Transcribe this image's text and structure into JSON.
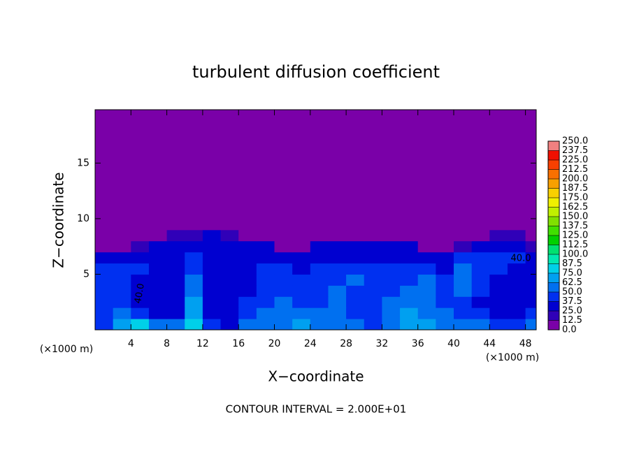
{
  "chart_data": {
    "type": "contour",
    "title": "turbulent diffusion coefficient",
    "xlabel": "X−coordinate",
    "ylabel": "Z−coordinate",
    "x_unit_left": "(×1000 m)",
    "x_unit_right": "(×1000 m)",
    "footer": "CONTOUR INTERVAL = 2.000E+01",
    "annotations": [
      "40.0",
      "40.0"
    ],
    "xlim": [
      0,
      49.2
    ],
    "ylim": [
      0,
      19.8
    ],
    "xticks": [
      4,
      8,
      12,
      16,
      20,
      24,
      28,
      32,
      36,
      40,
      44,
      48
    ],
    "yticks": [
      5,
      10,
      15
    ],
    "x_edges": [
      0,
      2,
      4,
      6,
      8,
      10,
      12,
      14,
      16,
      18,
      20,
      22,
      24,
      26,
      28,
      30,
      32,
      34,
      36,
      38,
      40,
      42,
      44,
      46,
      48,
      49.2
    ],
    "z_edges": [
      0,
      1,
      2,
      3,
      4,
      5,
      6,
      7,
      8,
      9,
      19.8
    ],
    "z": [
      [
        40,
        70,
        75,
        60,
        55,
        80,
        40,
        35,
        50,
        55,
        60,
        65,
        60,
        55,
        50,
        45,
        55,
        65,
        70,
        60,
        55,
        50,
        45,
        40,
        50
      ],
      [
        45,
        60,
        40,
        35,
        35,
        70,
        35,
        30,
        40,
        50,
        55,
        60,
        55,
        50,
        45,
        40,
        60,
        70,
        55,
        50,
        45,
        40,
        35,
        35,
        40
      ],
      [
        40,
        45,
        35,
        30,
        30,
        65,
        35,
        30,
        40,
        45,
        50,
        45,
        45,
        50,
        45,
        40,
        50,
        60,
        50,
        45,
        40,
        35,
        35,
        30,
        35
      ],
      [
        40,
        40,
        35,
        30,
        30,
        60,
        35,
        30,
        35,
        40,
        45,
        40,
        45,
        50,
        45,
        40,
        45,
        55,
        55,
        45,
        50,
        40,
        35,
        30,
        35
      ],
      [
        40,
        45,
        35,
        30,
        30,
        50,
        30,
        30,
        35,
        40,
        40,
        40,
        45,
        45,
        50,
        45,
        40,
        45,
        50,
        40,
        50,
        45,
        35,
        30,
        35
      ],
      [
        45,
        40,
        40,
        35,
        30,
        45,
        30,
        30,
        30,
        40,
        40,
        35,
        40,
        40,
        45,
        45,
        40,
        40,
        40,
        35,
        50,
        45,
        40,
        30,
        35
      ],
      [
        30,
        35,
        35,
        35,
        30,
        40,
        30,
        30,
        30,
        35,
        30,
        30,
        30,
        35,
        35,
        35,
        35,
        30,
        35,
        25,
        40,
        45,
        40,
        40,
        35
      ],
      [
        5,
        5,
        20,
        30,
        30,
        35,
        30,
        30,
        30,
        25,
        10,
        10,
        25,
        30,
        30,
        30,
        30,
        25,
        10,
        5,
        20,
        35,
        35,
        35,
        20
      ],
      [
        0,
        0,
        0,
        5,
        15,
        20,
        25,
        15,
        5,
        0,
        0,
        0,
        0,
        0,
        5,
        10,
        5,
        0,
        0,
        0,
        0,
        5,
        15,
        15,
        0
      ],
      [
        0,
        0,
        0,
        0,
        0,
        0,
        0,
        0,
        0,
        0,
        0,
        0,
        0,
        0,
        0,
        0,
        0,
        0,
        0,
        0,
        0,
        0,
        0,
        0,
        0
      ]
    ],
    "colorbar": {
      "levels": [
        {
          "value": 0,
          "label": "0.0"
        },
        12.5,
        {
          "value": 25,
          "label": "25.0"
        },
        37.5,
        {
          "value": 50,
          "label": "50.0"
        },
        62.5,
        {
          "value": 75,
          "label": "75.0"
        },
        87.5,
        {
          "value": 100,
          "label": "100.0"
        },
        112.5,
        {
          "value": 125,
          "label": "125.0"
        },
        137.5,
        {
          "value": 150,
          "label": "150.0"
        },
        162.5,
        {
          "value": 175,
          "label": "175.0"
        },
        187.5,
        {
          "value": 200,
          "label": "200.0"
        },
        212.5,
        {
          "value": 225,
          "label": "225.0"
        },
        237.5,
        {
          "value": 250,
          "label": "250.0"
        }
      ],
      "colors": [
        "#7a00a8",
        "#3000b8",
        "#0000d0",
        "#0030f0",
        "#0070f0",
        "#00a0f0",
        "#00d0e8",
        "#00e8b0",
        "#00e070",
        "#00d000",
        "#40e000",
        "#80e000",
        "#c0f000",
        "#f0f000",
        "#f8d000",
        "#f8a000",
        "#f87000",
        "#f84000",
        "#f01000",
        "#f08080"
      ]
    }
  }
}
